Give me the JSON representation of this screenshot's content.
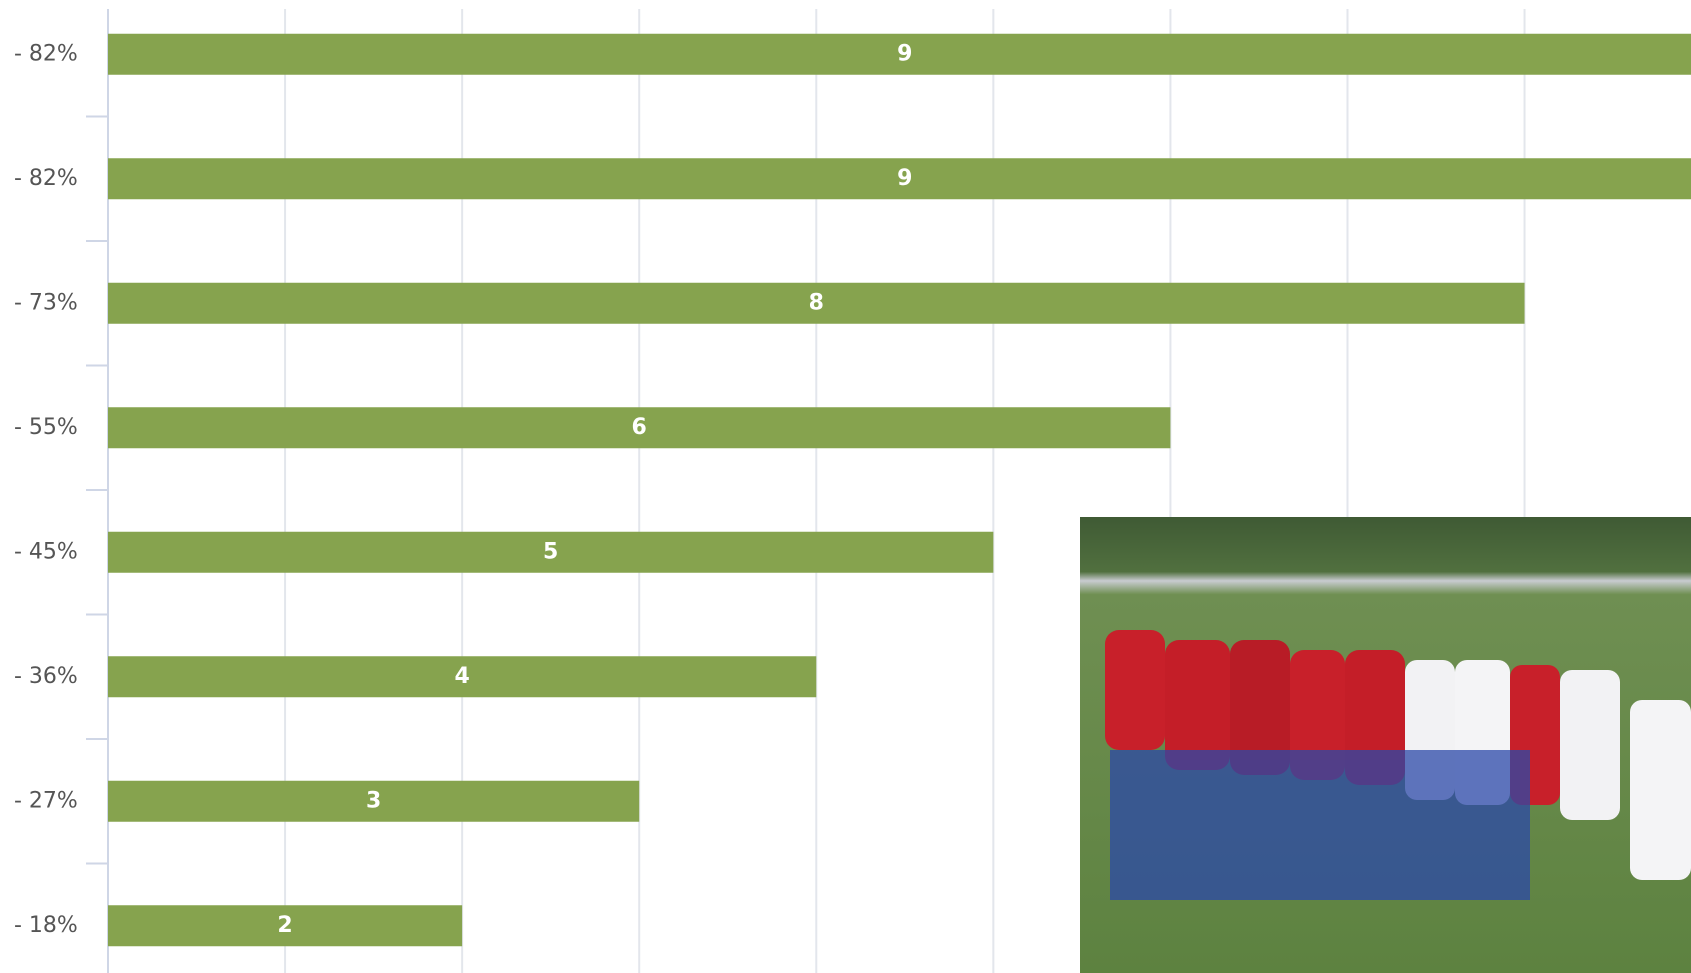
{
  "chart_data": {
    "type": "hbar",
    "categories": [
      "- 82%",
      "- 82%",
      "- 73%",
      "- 55%",
      "- 45%",
      "- 36%",
      "- 27%",
      "- 18%"
    ],
    "values": [
      9,
      9,
      8,
      6,
      5,
      4,
      3,
      2
    ],
    "color": "#86a34e",
    "xlim": [
      0,
      8.94
    ],
    "xticks": [
      0,
      1,
      2,
      3,
      4,
      5,
      6,
      7,
      8
    ],
    "grid": true
  }
}
